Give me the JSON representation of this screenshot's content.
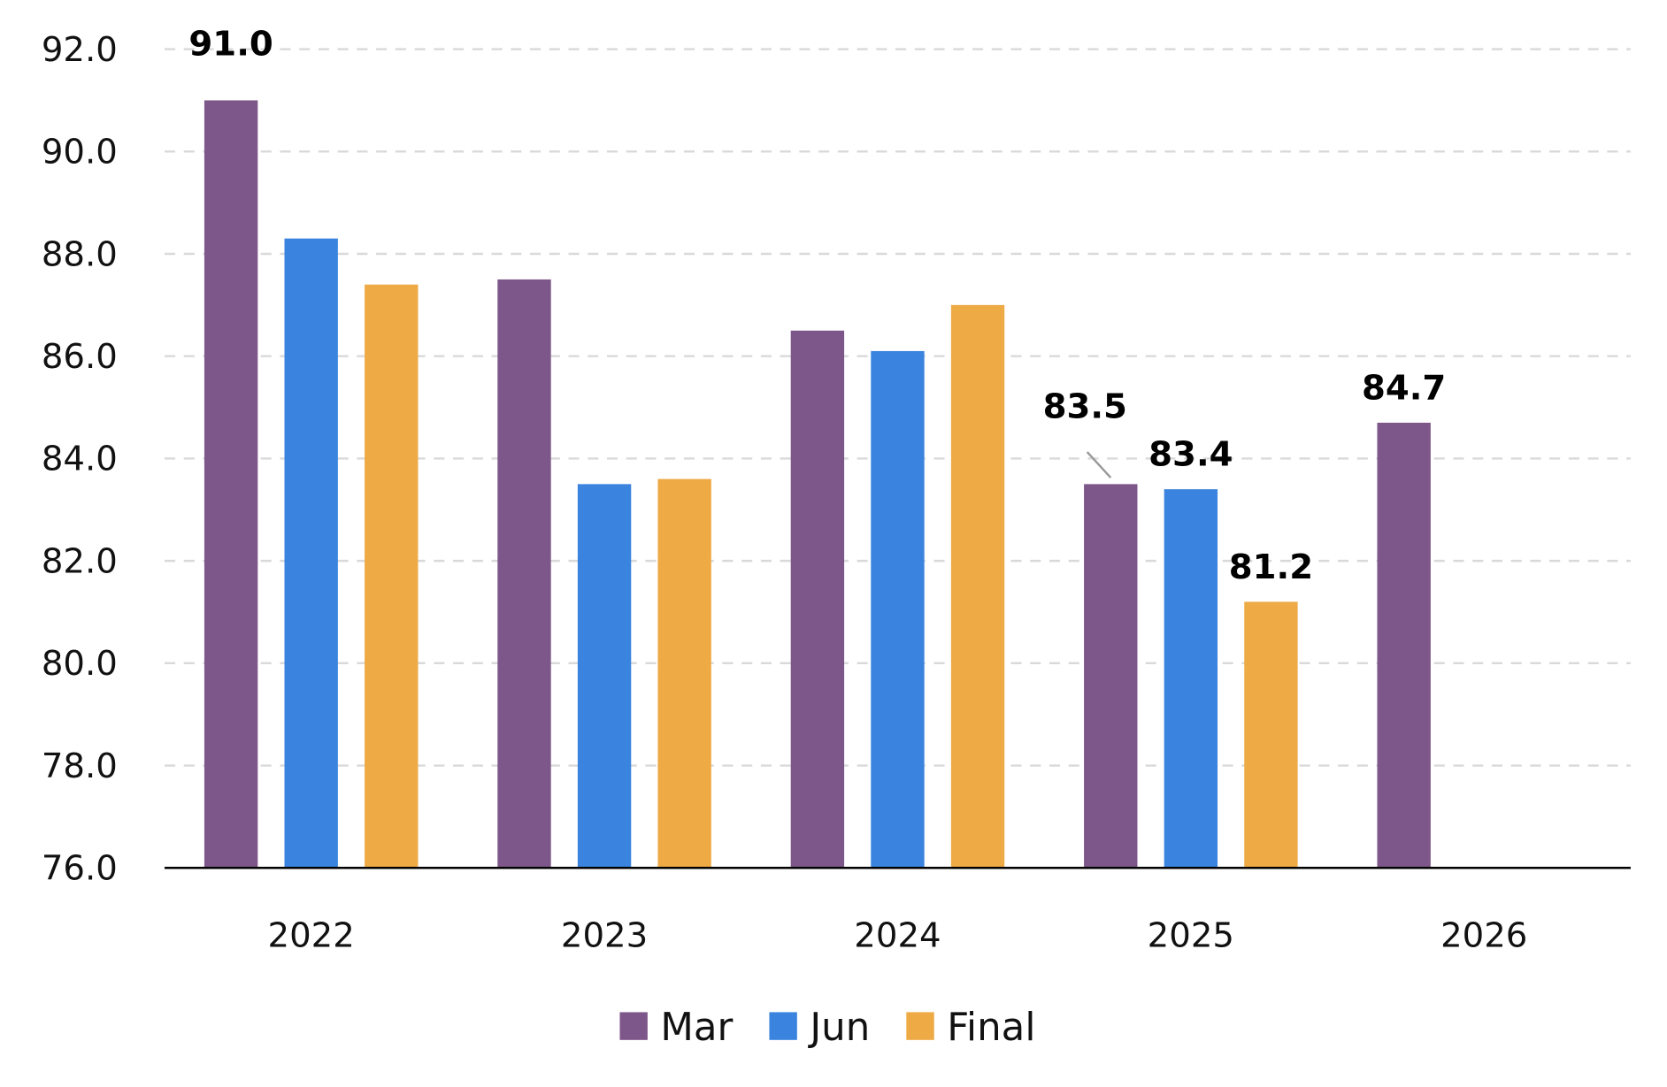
{
  "chart_data": {
    "type": "bar",
    "title": "",
    "xlabel": "",
    "ylabel": "",
    "categories": [
      "2022",
      "2023",
      "2024",
      "2025",
      "2026"
    ],
    "series": [
      {
        "name": "Mar",
        "color": "#7E578A",
        "values": [
          91.0,
          87.5,
          86.5,
          83.5,
          84.7
        ]
      },
      {
        "name": "Jun",
        "color": "#3A84DF",
        "values": [
          88.3,
          83.5,
          86.1,
          83.4,
          null
        ]
      },
      {
        "name": "Final",
        "color": "#EEAA45",
        "values": [
          87.4,
          83.6,
          87.0,
          81.2,
          null
        ]
      }
    ],
    "data_labels": [
      {
        "series": 0,
        "category": 0,
        "text": "91.0"
      },
      {
        "series": 0,
        "category": 3,
        "text": "83.5"
      },
      {
        "series": 1,
        "category": 3,
        "text": "83.4"
      },
      {
        "series": 2,
        "category": 3,
        "text": "81.2"
      },
      {
        "series": 0,
        "category": 4,
        "text": "84.7"
      }
    ],
    "ylim": [
      76,
      92
    ],
    "yticks": [
      "76.0",
      "78.0",
      "80.0",
      "82.0",
      "84.0",
      "86.0",
      "88.0",
      "90.0",
      "92.0"
    ],
    "grid": true,
    "legend": "bottom"
  }
}
